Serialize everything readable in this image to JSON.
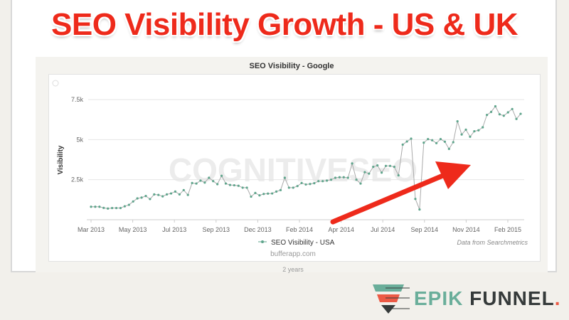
{
  "headline": "SEO Visibility Growth - US & UK",
  "footer_text": "bufferapp.com",
  "range_label": "2 years",
  "watermark": "COGNITIVESEO",
  "credit": "Data from Searchmetrics",
  "logo": {
    "part1": "EPIK",
    "part2": "FUNNEL",
    "dot": "."
  },
  "colors": {
    "headline": "#ee2a1b",
    "series": "#5fa58c",
    "line": "#aaaaaa",
    "arrow": "#ee2a1b",
    "logo_green": "#6aae9a",
    "logo_dark": "#353a3a"
  },
  "chart_data": {
    "type": "line",
    "title": "SEO Visibility - Google",
    "ylabel": "Visibility",
    "xlabel": "",
    "ylim": [
      0,
      7500
    ],
    "yticks": [
      2500,
      5000,
      7500
    ],
    "ytick_labels": [
      "2.5k",
      "5k",
      "7.5k"
    ],
    "xtick_labels": [
      "Mar 2013",
      "May 2013",
      "Jul 2013",
      "Sep 2013",
      "Dec 2013",
      "Feb 2014",
      "Apr 2014",
      "Jul 2014",
      "Sep 2014",
      "Nov 2014",
      "Feb 2015"
    ],
    "grid": true,
    "legend": "bottom-center",
    "series": [
      {
        "name": "SEO Visibility - USA",
        "values": [
          810,
          810,
          810,
          740,
          700,
          730,
          730,
          730,
          840,
          930,
          1140,
          1330,
          1380,
          1480,
          1290,
          1580,
          1550,
          1460,
          1580,
          1640,
          1760,
          1580,
          1850,
          1550,
          2290,
          2260,
          2440,
          2320,
          2620,
          2410,
          2220,
          2740,
          2260,
          2170,
          2150,
          2120,
          2000,
          2000,
          1440,
          1670,
          1520,
          1610,
          1630,
          1640,
          1760,
          1850,
          2620,
          2000,
          2000,
          2100,
          2290,
          2200,
          2230,
          2280,
          2410,
          2410,
          2440,
          2500,
          2620,
          2650,
          2650,
          2620,
          3510,
          2500,
          2260,
          2970,
          2880,
          3300,
          3390,
          2940,
          3360,
          3360,
          3300,
          2770,
          4690,
          4880,
          5060,
          1300,
          640,
          4810,
          5030,
          4960,
          4780,
          5030,
          4870,
          4420,
          4840,
          6140,
          5320,
          5620,
          5180,
          5520,
          5580,
          5770,
          6540,
          6730,
          7080,
          6580,
          6490,
          6700,
          6910,
          6290,
          6610
        ]
      }
    ]
  }
}
